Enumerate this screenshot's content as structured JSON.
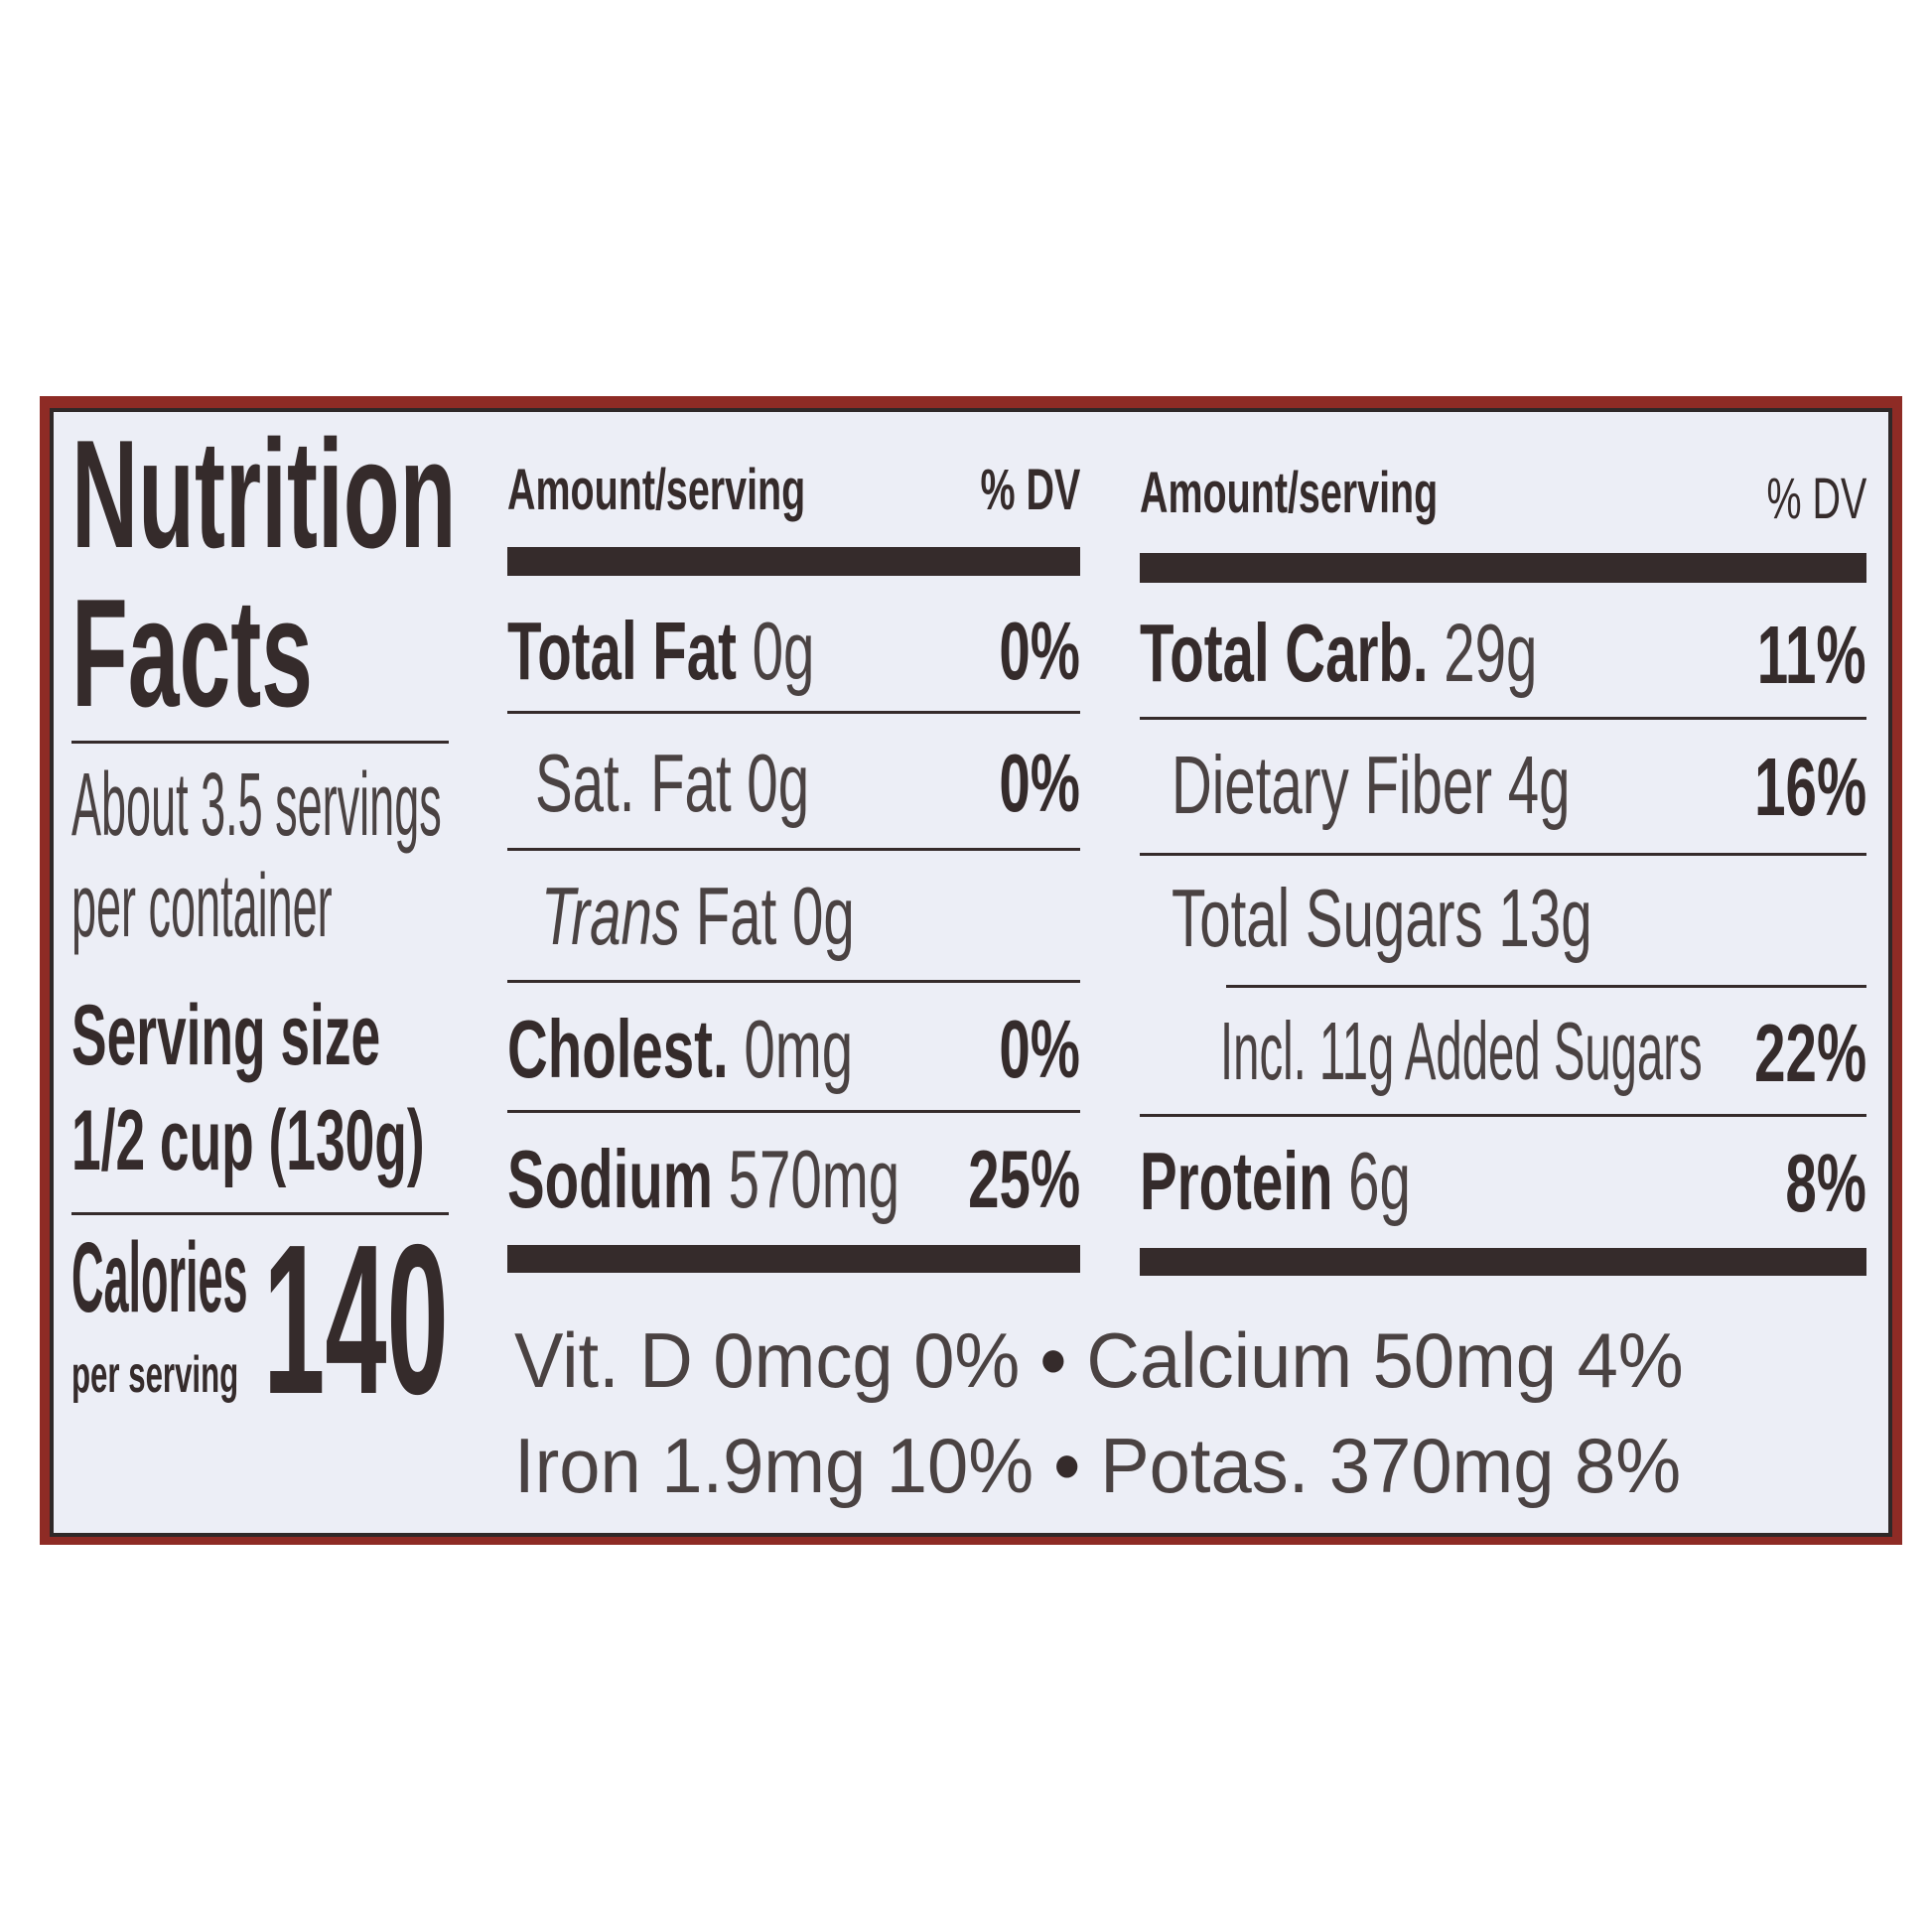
{
  "label": {
    "title_line1": "Nutrition",
    "title_line2": "Facts",
    "servings_line1": "About 3.5 servings",
    "servings_line2": "per container",
    "serving_size_label": "Serving size",
    "serving_size_value": "1/2 cup (130g)",
    "calories_label": "Calories",
    "calories_sub": "per serving",
    "calories_value": "140",
    "header": {
      "amount": "Amount/serving",
      "dv": "% DV"
    },
    "left_rows": [
      {
        "name": "Total Fat",
        "amount": "0g",
        "dv": "0%"
      },
      {
        "name": "Sat. Fat",
        "amount": "0g",
        "dv": "0%"
      },
      {
        "name": "Trans",
        "amount": "Fat 0g",
        "dv": ""
      },
      {
        "name": "Cholest.",
        "amount": "0mg",
        "dv": "0%"
      },
      {
        "name": "Sodium",
        "amount": "570mg",
        "dv": "25%"
      }
    ],
    "right_rows": [
      {
        "name": "Total Carb.",
        "amount": "29g",
        "dv": "11%"
      },
      {
        "name": "Dietary Fiber",
        "amount": "4g",
        "dv": "16%"
      },
      {
        "name": "Total Sugars",
        "amount": "13g",
        "dv": ""
      },
      {
        "name": "Incl. 11g Added Sugars",
        "amount": "",
        "dv": "22%"
      },
      {
        "name": "Protein",
        "amount": "6g",
        "dv": "8%"
      }
    ],
    "vitamins": [
      [
        "Vit. D 0mcg 0%",
        "Calcium 50mg 4%"
      ],
      [
        "Iron 1.9mg 10%",
        "Potas. 370mg 8%"
      ]
    ],
    "bullet": "•",
    "colors": {
      "border": "#8e2b25",
      "ink": "#352b2b",
      "background": "#eceef6"
    }
  }
}
